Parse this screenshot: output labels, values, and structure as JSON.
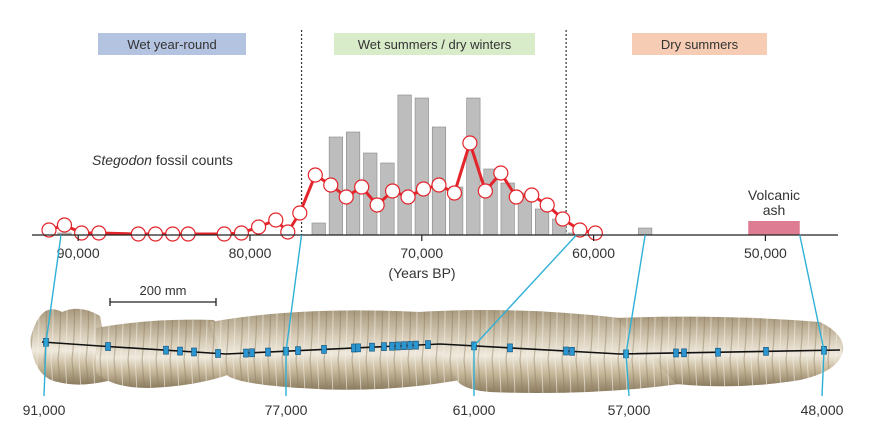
{
  "chart_data": {
    "type": "bar",
    "title": "",
    "xlabel": "(Years BP)",
    "ylabel": "",
    "x_unit": "Years BP",
    "xlim": [
      92000,
      48000
    ],
    "x_reversed": true,
    "x_ticks": [
      90000,
      80000,
      70000,
      60000,
      50000
    ],
    "x_tick_labels": [
      "90,000",
      "80,000",
      "70,000",
      "60,000",
      "50,000"
    ],
    "ylim": [
      0,
      150
    ],
    "grid": false,
    "series_label": {
      "italic": "Stegodon",
      "rest": " fossil counts"
    },
    "periods": [
      {
        "label": "Wet year-round",
        "start": 92000,
        "end": 77000,
        "color": "#b3c3e0"
      },
      {
        "label": "Wet summers / dry winters",
        "start": 77000,
        "end": 61600,
        "color": "#d9ecc9"
      },
      {
        "label": "Dry summers",
        "start": 61600,
        "end": 48000,
        "color": "#f6cdb4"
      }
    ],
    "boundaries": [
      77000,
      61600
    ],
    "bars": {
      "x": [
        90800,
        89700,
        88800,
        87300,
        86500,
        85500,
        84500,
        83600,
        82500,
        81500,
        76000,
        75000,
        74000,
        73000,
        72000,
        71000,
        70000,
        69000,
        68000,
        67000,
        66000,
        65000,
        64000,
        63000,
        62000,
        61100,
        57000
      ],
      "values": [
        2,
        1,
        1,
        2,
        2,
        2,
        1,
        1,
        1,
        1,
        12,
        98,
        103,
        82,
        72,
        140,
        137,
        108,
        48,
        137,
        66,
        52,
        42,
        26,
        16,
        2,
        7
      ]
    },
    "line": {
      "x": [
        91700,
        90800,
        89800,
        88800,
        86500,
        85500,
        84500,
        83600,
        81500,
        80500,
        79500,
        78500,
        77800,
        77100,
        76200,
        75300,
        74400,
        73500,
        72600,
        71700,
        70800,
        69900,
        69000,
        68100,
        67200,
        66300,
        65400,
        64500,
        63600,
        62700,
        61800,
        60800,
        59900
      ],
      "values": [
        5,
        10,
        2,
        2,
        1,
        1,
        1,
        1,
        1,
        2,
        8,
        15,
        3,
        22,
        60,
        50,
        38,
        48,
        30,
        44,
        38,
        46,
        50,
        42,
        92,
        44,
        62,
        38,
        40,
        30,
        16,
        5,
        2
      ]
    },
    "ash": {
      "label": [
        "Volcanic",
        "ash"
      ],
      "start": 51000,
      "end": 48000,
      "value": 14,
      "color": "#de7c94"
    }
  },
  "scale_bar": {
    "label": "200 mm"
  },
  "stalagmite": {
    "samples": [
      {
        "age": 91000,
        "label": "91,000"
      },
      {
        "age": 77000,
        "label": "77,000"
      },
      {
        "age": 61000,
        "label": "61,000"
      },
      {
        "age": 57000,
        "label": "57,000"
      },
      {
        "age": 48000,
        "label": "48,000"
      }
    ]
  },
  "colors": {
    "bar": "#bdbdbd",
    "bar_edge": "#888888",
    "line": "#e3252b",
    "connector": "#2fb0d6",
    "sample_marker": "#2c95cf"
  }
}
